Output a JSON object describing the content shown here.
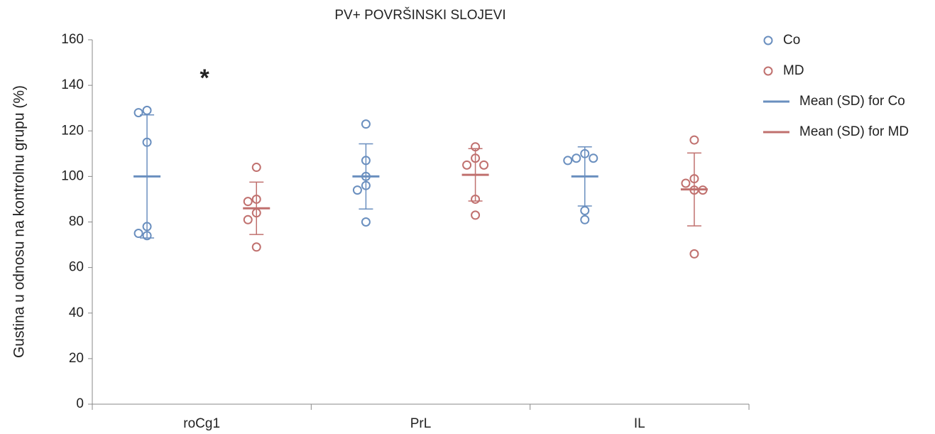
{
  "chart_data": {
    "type": "dot",
    "title": "PV+ POVRŠINSKI SLOJEVI",
    "y_label": "Gustina u odnosu na kontrolnu grupu (%)",
    "categories": [
      "roCg1",
      "PrL",
      "IL"
    ],
    "ylim": [
      0,
      160
    ],
    "yticks": [
      0,
      20,
      40,
      60,
      80,
      100,
      120,
      140,
      160
    ],
    "annotations": [
      {
        "text": "*",
        "category": 0
      }
    ],
    "series": [
      {
        "name": "Co",
        "mean_legend": "Mean (SD) for Co",
        "color": "#6a8fbf",
        "values": [
          [
            129,
            128,
            115,
            78,
            75,
            74
          ],
          [
            123,
            107,
            100,
            96,
            94,
            80
          ],
          [
            110,
            108,
            108,
            107,
            85,
            81
          ]
        ],
        "mean": [
          100,
          100,
          100
        ],
        "sd": [
          27,
          14.3,
          13
        ]
      },
      {
        "name": "MD",
        "mean_legend": "Mean (SD) for MD",
        "color": "#c0706e",
        "values": [
          [
            104,
            90,
            89,
            84,
            81,
            69
          ],
          [
            113,
            108,
            105,
            105,
            90,
            83
          ],
          [
            116,
            99,
            97,
            94,
            94,
            66
          ]
        ],
        "mean": [
          86,
          100.7,
          94.3
        ],
        "sd": [
          11.5,
          11.5,
          16
        ]
      }
    ]
  }
}
